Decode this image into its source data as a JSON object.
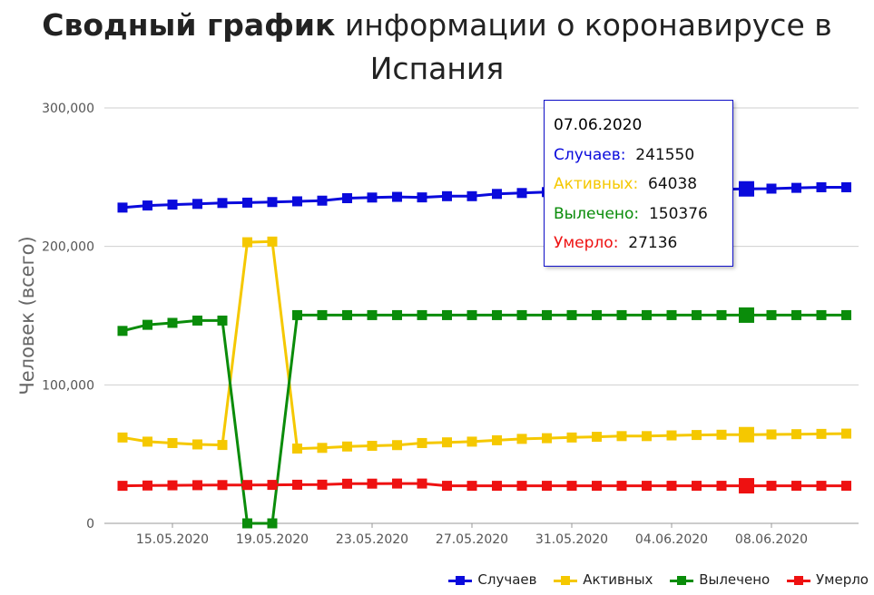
{
  "title": {
    "bold": "Сводный график",
    "rest": "информации о коронавирусе в Испания"
  },
  "chart_data": {
    "type": "line",
    "ylabel": "Человек (всего)",
    "ylim": [
      0,
      300000
    ],
    "yticks": [
      0,
      100000,
      200000,
      300000
    ],
    "ytick_labels": [
      "0",
      "100,000",
      "200,000",
      "300,000"
    ],
    "x": [
      "13.05.2020",
      "14.05.2020",
      "15.05.2020",
      "16.05.2020",
      "17.05.2020",
      "18.05.2020",
      "19.05.2020",
      "20.05.2020",
      "21.05.2020",
      "22.05.2020",
      "23.05.2020",
      "24.05.2020",
      "25.05.2020",
      "26.05.2020",
      "27.05.2020",
      "28.05.2020",
      "29.05.2020",
      "30.05.2020",
      "31.05.2020",
      "01.06.2020",
      "02.06.2020",
      "03.06.2020",
      "04.06.2020",
      "05.06.2020",
      "06.06.2020",
      "07.06.2020",
      "08.06.2020",
      "09.06.2020",
      "10.06.2020",
      "11.06.2020"
    ],
    "xtick_labels": [
      "15.05.2020",
      "19.05.2020",
      "23.05.2020",
      "27.05.2020",
      "31.05.2020",
      "04.06.2020",
      "08.06.2020"
    ],
    "xtick_indices": [
      2,
      6,
      10,
      14,
      18,
      22,
      26
    ],
    "grid": true,
    "legend": "bottom-right",
    "highlight_index": 25,
    "series": [
      {
        "name": "Случаев",
        "color": "#0a0adc",
        "values": [
          228030,
          229540,
          230183,
          230698,
          231350,
          231606,
          232037,
          232555,
          233037,
          234824,
          235290,
          235772,
          235400,
          236259,
          236259,
          237906,
          238564,
          239228,
          239479,
          239638,
          239932,
          240326,
          240660,
          240978,
          241310,
          241550,
          241717,
          242280,
          242707,
          242707
        ]
      },
      {
        "name": "Активных",
        "color": "#f5c800",
        "values": [
          62000,
          59000,
          58000,
          57000,
          56600,
          203000,
          203500,
          54000,
          54500,
          55500,
          56000,
          56500,
          58000,
          58500,
          59000,
          60000,
          61000,
          61500,
          62000,
          62500,
          63000,
          63000,
          63500,
          63800,
          64000,
          64038,
          64200,
          64400,
          64600,
          64800
        ]
      },
      {
        "name": "Вылечено",
        "color": "#0a8c0a",
        "values": [
          138980,
          143374,
          144783,
          146446,
          146446,
          0,
          0,
          150376,
          150376,
          150376,
          150376,
          150376,
          150376,
          150376,
          150376,
          150376,
          150376,
          150376,
          150376,
          150376,
          150376,
          150376,
          150376,
          150376,
          150376,
          150376,
          150376,
          150376,
          150376,
          150376
        ]
      },
      {
        "name": "Умерло",
        "color": "#ee1111",
        "values": [
          27104,
          27321,
          27459,
          27563,
          27650,
          27709,
          27778,
          27888,
          27940,
          28628,
          28678,
          28752,
          28752,
          27117,
          27118,
          27119,
          27121,
          27125,
          27127,
          27127,
          27127,
          27128,
          27133,
          27134,
          27135,
          27136,
          27136,
          27136,
          27136,
          27136
        ]
      }
    ]
  },
  "tooltip": {
    "date": "07.06.2020",
    "rows": [
      {
        "label": "Случаев:",
        "value": "241550",
        "color": "#0a0adc"
      },
      {
        "label": "Активных:",
        "value": "64038",
        "color": "#f5c800"
      },
      {
        "label": "Вылечено:",
        "value": "150376",
        "color": "#0a8c0a"
      },
      {
        "label": "Умерло:",
        "value": "27136",
        "color": "#ee1111"
      }
    ]
  }
}
